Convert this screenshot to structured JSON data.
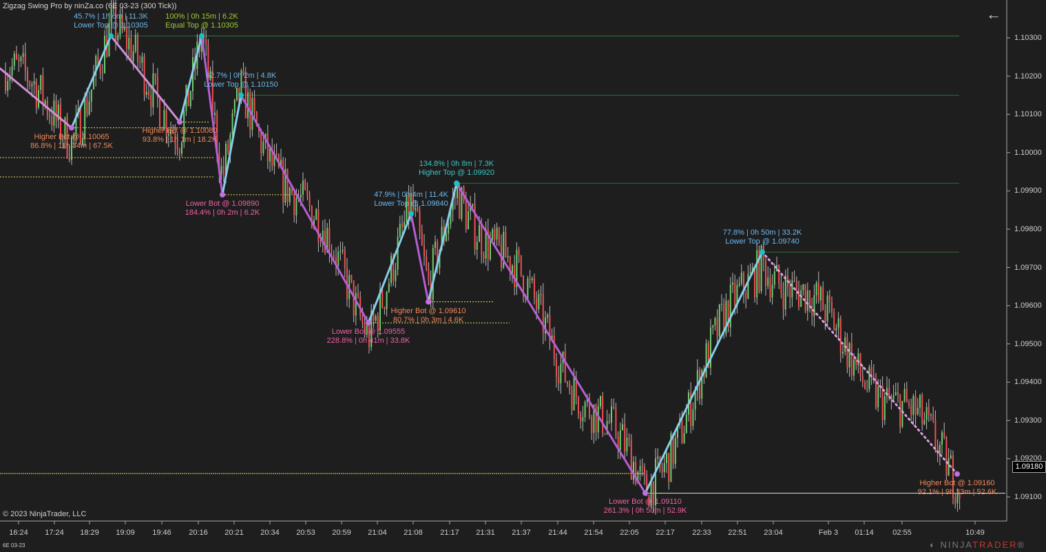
{
  "title": "Zigzag Swing Pro by ninZa.co (6E 03-23 (300 Tick))",
  "copyright": "© 2023 NinjaTrader, LLC",
  "symbol": "6E 03-23",
  "current_price": "1.09180",
  "logo": {
    "part1": "NINJA",
    "part2": "TRADER",
    "registered": "®"
  },
  "icons": {
    "back": "arrow-left-icon"
  },
  "colors": {
    "up_leg": "#87ceeb",
    "down_leg": "#b65fd3",
    "top_dot": "#19c3c3",
    "bot_dot": "#c070e0",
    "bull": "#6fcf6f",
    "bear": "#f05050",
    "wick": "#bbbbbb",
    "top_line": "#2e6b3a",
    "bot_line": "#e8d860"
  },
  "price_ticks": [
    "1.10300",
    "1.10200",
    "1.10100",
    "1.10000",
    "1.09900",
    "1.09800",
    "1.09700",
    "1.09600",
    "1.09500",
    "1.09400",
    "1.09300",
    "1.09200",
    "1.09100"
  ],
  "time_ticks": [
    "16:24",
    "17:24",
    "18:29",
    "19:09",
    "19:46",
    "20:16",
    "20:21",
    "20:34",
    "20:53",
    "20:59",
    "21:04",
    "21:08",
    "21:17",
    "21:31",
    "21:37",
    "21:44",
    "21:54",
    "22:05",
    "22:17",
    "22:33",
    "22:51",
    "23:04",
    "Feb 3",
    "01:14",
    "02:55",
    "10:49"
  ],
  "swings": [
    {
      "price": 1.10065
    },
    {
      "price": 1.10305
    },
    {
      "price": 1.1008
    },
    {
      "price": 1.10305
    },
    {
      "price": 1.0989
    },
    {
      "price": 1.1015
    },
    {
      "price": 1.09555
    },
    {
      "price": 1.0984
    },
    {
      "price": 1.0961
    },
    {
      "price": 1.0992
    },
    {
      "price": 1.0911
    },
    {
      "price": 1.0974
    },
    {
      "price": 1.0916
    }
  ],
  "labels": [
    {
      "l1": "45.7%  |  1h 6m  |  11.3K",
      "l2": "Lower Top @ 1.10305",
      "color": "#6cb9ee"
    },
    {
      "l1": "100%  |  0h 15m  |  6.2K",
      "l2": "Equal Top @ 1.10305",
      "color": "#9acd32"
    },
    {
      "l1": "62.7%  |  0h 2m  |  4.8K",
      "l2": "Lower Top @ 1.10150",
      "color": "#6cb9ee"
    },
    {
      "l1": "Higher Bot @ 1.10065",
      "l2": "86.8%  |  11h 34m  |  67.5K",
      "color": "#f0885a"
    },
    {
      "l1": "Higher Bot @ 1.10080",
      "l2": "93.8%  |  1h 1m  |  18.2K",
      "color": "#f0885a"
    },
    {
      "l1": "Lower Bot @ 1.09890",
      "l2": "184.4%  |  0h 2m  |  6.2K",
      "color": "#f060a8"
    },
    {
      "l1": "134.8%  |  0h 8m  |  7.3K",
      "l2": "Higher Top @ 1.09920",
      "color": "#3ec4c4"
    },
    {
      "l1": "47.9%  |  0h 4m  |  11.4K",
      "l2": "Lower Top @ 1.09840",
      "color": "#6cb9ee"
    },
    {
      "l1": "Higher Bot @ 1.09610",
      "l2": "80.7%  |  0h 3m  |  4.6K",
      "color": "#f0885a"
    },
    {
      "l1": "Lower Bot @ 1.09555",
      "l2": "228.8%  |  0h 41m  |  33.8K",
      "color": "#f060a8"
    },
    {
      "l1": "77.8%  |  0h 50m  |  33.2K",
      "l2": "Lower Top @ 1.09740",
      "color": "#6cb9ee"
    },
    {
      "l1": "Lower Bot @ 1.09110",
      "l2": "261.3%  |  0h 50m  |  52.9K",
      "color": "#f060a8"
    },
    {
      "l1": "Higher Bot @ 1.09160",
      "l2": "92.1%  |  9h 33m  |  52.6K",
      "color": "#f0885a"
    }
  ]
}
